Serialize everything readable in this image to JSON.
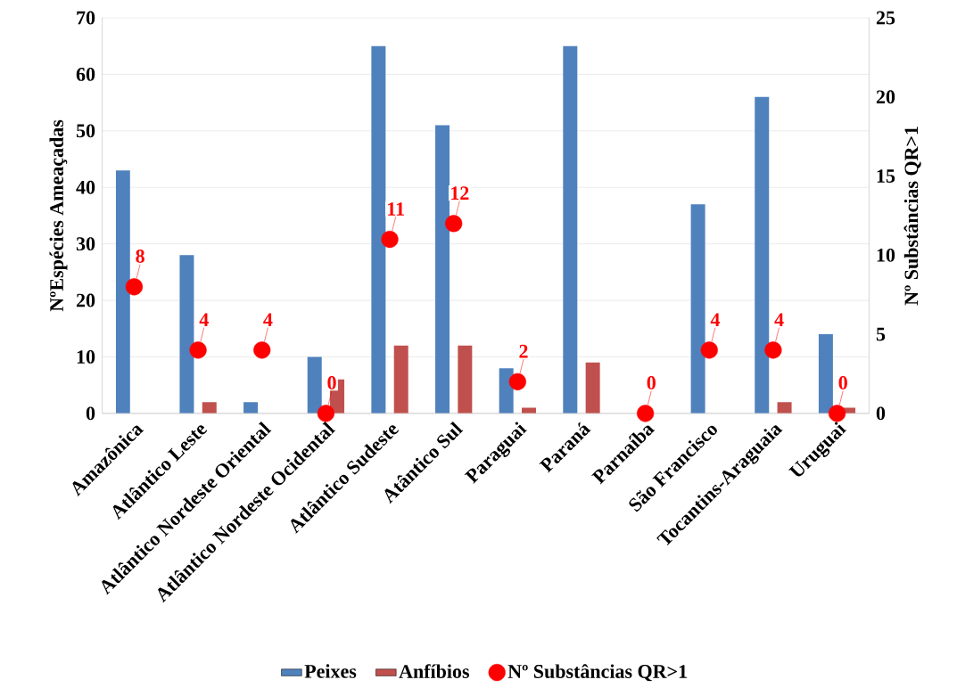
{
  "chart_data": {
    "type": "bar",
    "ylabel": "NºEspécies Ameaçadas",
    "y2label": "Nº Substâncias QR>1",
    "categories": [
      "Amazônica",
      "Atlântico Leste",
      "Atlântico Nordeste Oriental",
      "Atlântico Nordeste Ocidental",
      "Atlântico Sudeste",
      "Atântico Sul",
      "Paraguai",
      "Paraná",
      "Parnaíba",
      "São Francisco",
      "Tocantins-Araguaia",
      "Uruguai"
    ],
    "series": [
      {
        "name": "Peixes",
        "color": "#4f81bd",
        "values": [
          43,
          28,
          2,
          10,
          65,
          51,
          8,
          65,
          0,
          37,
          56,
          14
        ]
      },
      {
        "name": "Anfíbios",
        "color": "#c0504d",
        "values": [
          0,
          2,
          0,
          6,
          12,
          12,
          1,
          9,
          0,
          0,
          2,
          1
        ]
      },
      {
        "name": "Nº Substâncias QR>1",
        "type": "scatter",
        "axis": "y2",
        "color": "#ff0000",
        "data_labels": true,
        "values": [
          8,
          4,
          4,
          0,
          11,
          12,
          2,
          null,
          0,
          4,
          4,
          0
        ]
      }
    ],
    "ylim": [
      0,
      70
    ],
    "yticks": [
      0,
      10,
      20,
      30,
      40,
      50,
      60,
      70
    ],
    "y2lim": [
      0,
      25
    ],
    "y2ticks": [
      0,
      5,
      10,
      15,
      20,
      25
    ],
    "grid": "y",
    "legend": "bottom"
  }
}
